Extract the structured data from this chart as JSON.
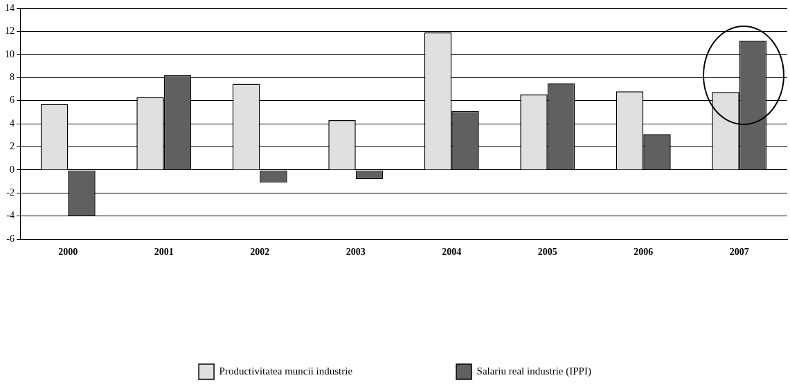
{
  "chart_data": {
    "type": "bar",
    "categories": [
      "2000",
      "2001",
      "2002",
      "2003",
      "2004",
      "2005",
      "2006",
      "2007"
    ],
    "series": [
      {
        "name": "Productivitatea muncii industrie",
        "color": "#e0e0e0",
        "values": [
          5.7,
          6.3,
          7.45,
          4.3,
          11.9,
          6.55,
          6.8,
          6.75
        ]
      },
      {
        "name": "Salariu real industrie (IPPI)",
        "color": "#606060",
        "values": [
          -4.0,
          8.2,
          -1.1,
          -0.8,
          5.1,
          7.5,
          3.1,
          11.2
        ]
      }
    ],
    "ylim": [
      -6,
      14
    ],
    "yticks": [
      -6,
      -4,
      -2,
      0,
      2,
      4,
      6,
      8,
      10,
      12,
      14
    ],
    "grid": "y",
    "legend": "bottom"
  }
}
